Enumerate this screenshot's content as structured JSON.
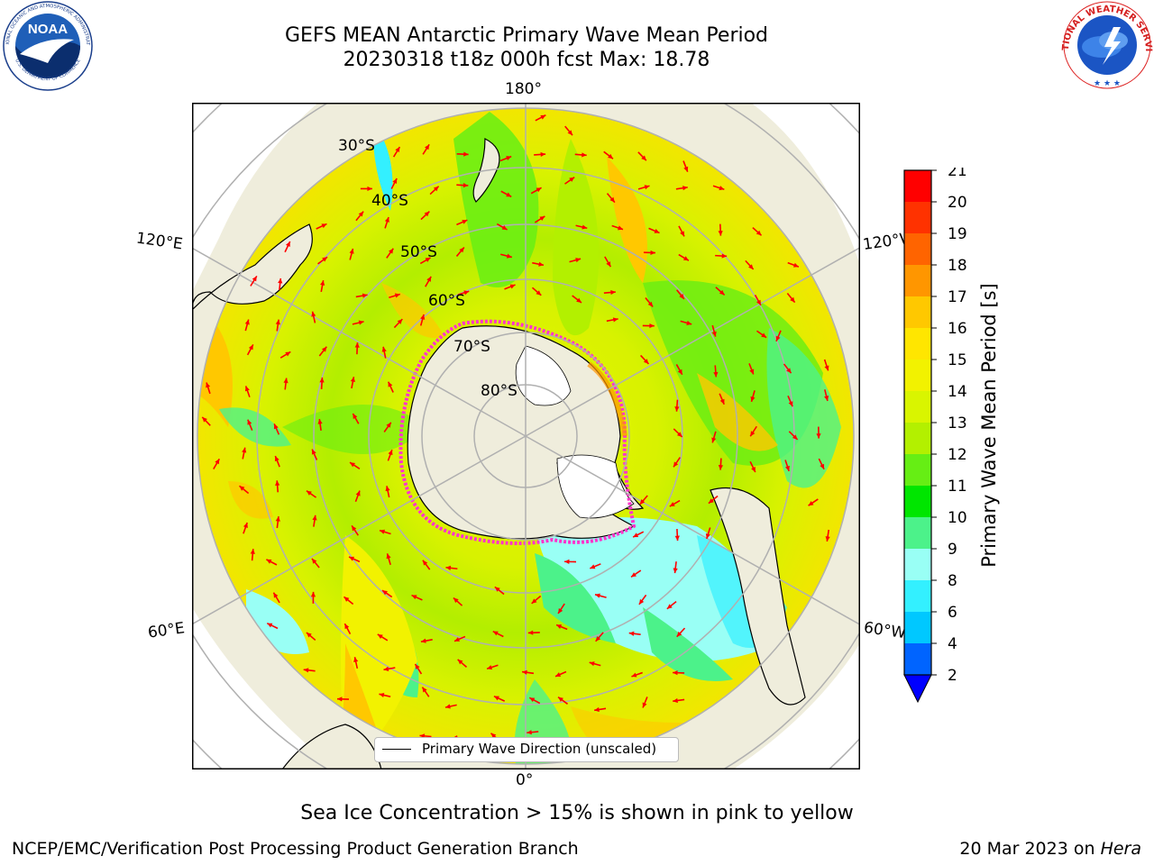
{
  "title": {
    "line1": "GEFS MEAN Antarctic Primary Wave Mean Period",
    "line2": "20230318 t18z 000h fcst   Max: 18.78"
  },
  "logos": {
    "left": {
      "name": "NOAA",
      "ring_text": "NATIONAL OCEANIC AND ATMOSPHERIC ADMINISTRATION",
      "ring_text_bottom": "U.S. DEPARTMENT OF COMMERCE",
      "icon": "noaa-logo"
    },
    "right": {
      "ring_text": "NATIONAL WEATHER SERVICE",
      "icon": "nws-logo"
    }
  },
  "map": {
    "projection": "south-polar-stereographic",
    "longitude_labels": {
      "top": "180°",
      "bottom": "0°",
      "upper_left": "120°E",
      "upper_right": "120°W",
      "lower_left": "60°E",
      "lower_right": "60°W"
    },
    "latitude_labels": [
      "30°S",
      "40°S",
      "50°S",
      "60°S",
      "70°S",
      "80°S"
    ],
    "legend": "Primary Wave Direction (unscaled)",
    "colors": {
      "land": "#efeddc",
      "ice_edge": "#ff33cc",
      "arrow": "#ff0000",
      "grid": "#b0b0b0"
    }
  },
  "colorbar": {
    "label": "Primary Wave Mean Period [s]",
    "ticks": [
      "2",
      "4",
      "6",
      "8",
      "9",
      "10",
      "11",
      "12",
      "13",
      "14",
      "15",
      "16",
      "17",
      "18",
      "19",
      "20",
      "21"
    ],
    "colors": [
      "#0064ff",
      "#00c8ff",
      "#33f0ff",
      "#99fff5",
      "#4cf28a",
      "#00e600",
      "#66ee14",
      "#b3f000",
      "#d9f500",
      "#f2f200",
      "#ffe600",
      "#ffc800",
      "#ff9600",
      "#ff6400",
      "#ff3200",
      "#ff0000"
    ],
    "extend_color": "#0000ff"
  },
  "subtitle": "Sea Ice Concentration > 15% is shown in pink to yellow",
  "footer": {
    "left": "NCEP/EMC/Verification Post Processing Product Generation Branch",
    "right_date": "20 Mar 2023 on ",
    "right_host": "Hera"
  }
}
